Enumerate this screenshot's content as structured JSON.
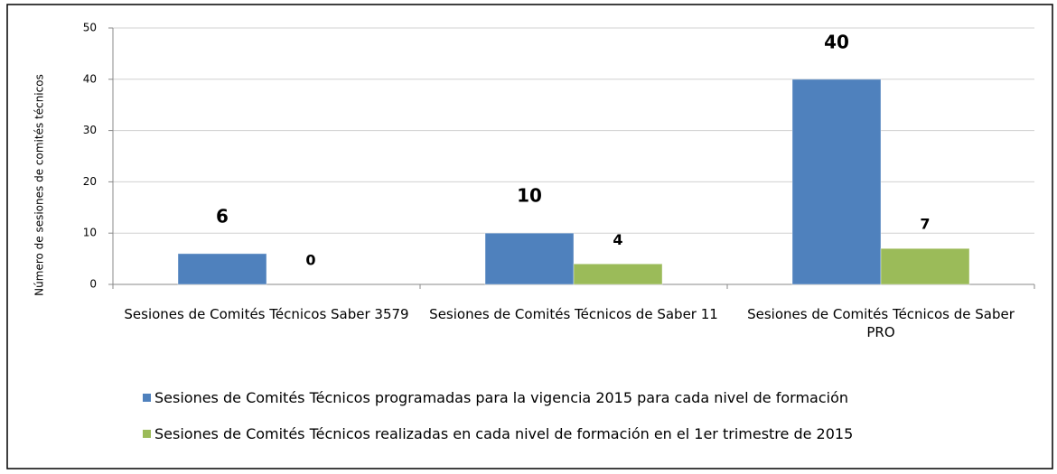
{
  "chart_data": {
    "type": "bar",
    "y_label": "Número de sesiones de comités técnicos",
    "categories": [
      "Sesiones de Comités Técnicos Saber 3579",
      "Sesiones de Comités Técnicos de Saber 11",
      "Sesiones de Comités Técnicos de Saber PRO"
    ],
    "series": [
      {
        "name": "Sesiones de Comités Técnicos programadas para la vigencia 2015 para cada nivel de formación",
        "color": "#4f81bd",
        "values": [
          6,
          10,
          40
        ]
      },
      {
        "name": "Sesiones de Comités Técnicos realizadas en cada nivel de formación en el 1er trimestre de 2015",
        "color": "#9bbb59",
        "values": [
          0,
          4,
          7
        ]
      }
    ],
    "ylim": [
      0,
      50
    ],
    "yticks": [
      0,
      10,
      20,
      30,
      40,
      50
    ],
    "grid": true,
    "legend": "bottom"
  }
}
